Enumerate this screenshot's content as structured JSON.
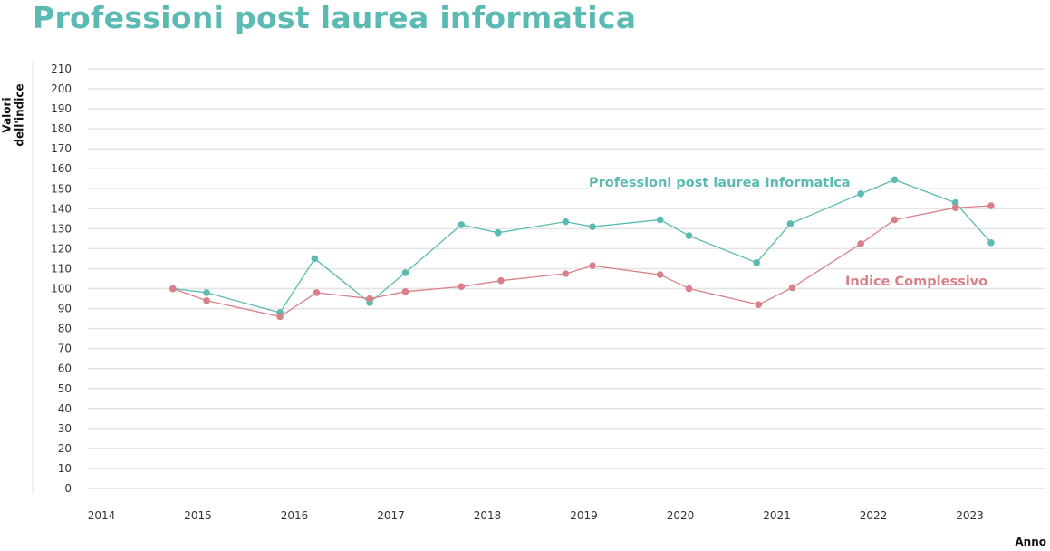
{
  "chart_data": {
    "type": "line",
    "title": "Professioni post laurea informatica",
    "xlabel": "Anno",
    "ylabel": "Valori dell'indice",
    "xlim": [
      2014,
      2024
    ],
    "ylim": [
      0,
      210
    ],
    "x_ticks": [
      "2014",
      "2015",
      "2016",
      "2017",
      "2018",
      "2019",
      "2020",
      "2021",
      "2022",
      "2023"
    ],
    "y_ticks": [
      0,
      10,
      20,
      30,
      40,
      50,
      60,
      70,
      80,
      90,
      100,
      110,
      120,
      130,
      140,
      150,
      160,
      170,
      180,
      190,
      200,
      210
    ],
    "grid": true,
    "legend": "inline labels",
    "series": [
      {
        "name": "Professioni post laurea Informatica",
        "color": "#5bbab1",
        "x": [
          2014.74,
          2015.09,
          2015.85,
          2016.21,
          2016.78,
          2017.15,
          2017.73,
          2018.11,
          2018.81,
          2019.09,
          2019.79,
          2020.09,
          2020.79,
          2021.14,
          2021.87,
          2022.22,
          2022.85,
          2023.22
        ],
        "y": [
          100,
          98,
          88,
          115,
          93,
          108,
          132,
          128,
          133.5,
          131,
          134.5,
          126.5,
          113,
          132.5,
          147.5,
          154.5,
          143,
          123
        ]
      },
      {
        "name": "Indice Complessivo",
        "color": "#d9808a",
        "x": [
          2014.74,
          2015.09,
          2015.85,
          2016.23,
          2016.78,
          2017.15,
          2017.73,
          2018.14,
          2018.81,
          2019.09,
          2019.79,
          2020.09,
          2020.81,
          2021.16,
          2021.87,
          2022.22,
          2022.85,
          2023.22
        ],
        "y": [
          100,
          94,
          86,
          98,
          95,
          98.5,
          101,
          104,
          107.5,
          111.5,
          107,
          100,
          92,
          100.5,
          122.5,
          134.5,
          140.5,
          141.5
        ]
      }
    ]
  }
}
